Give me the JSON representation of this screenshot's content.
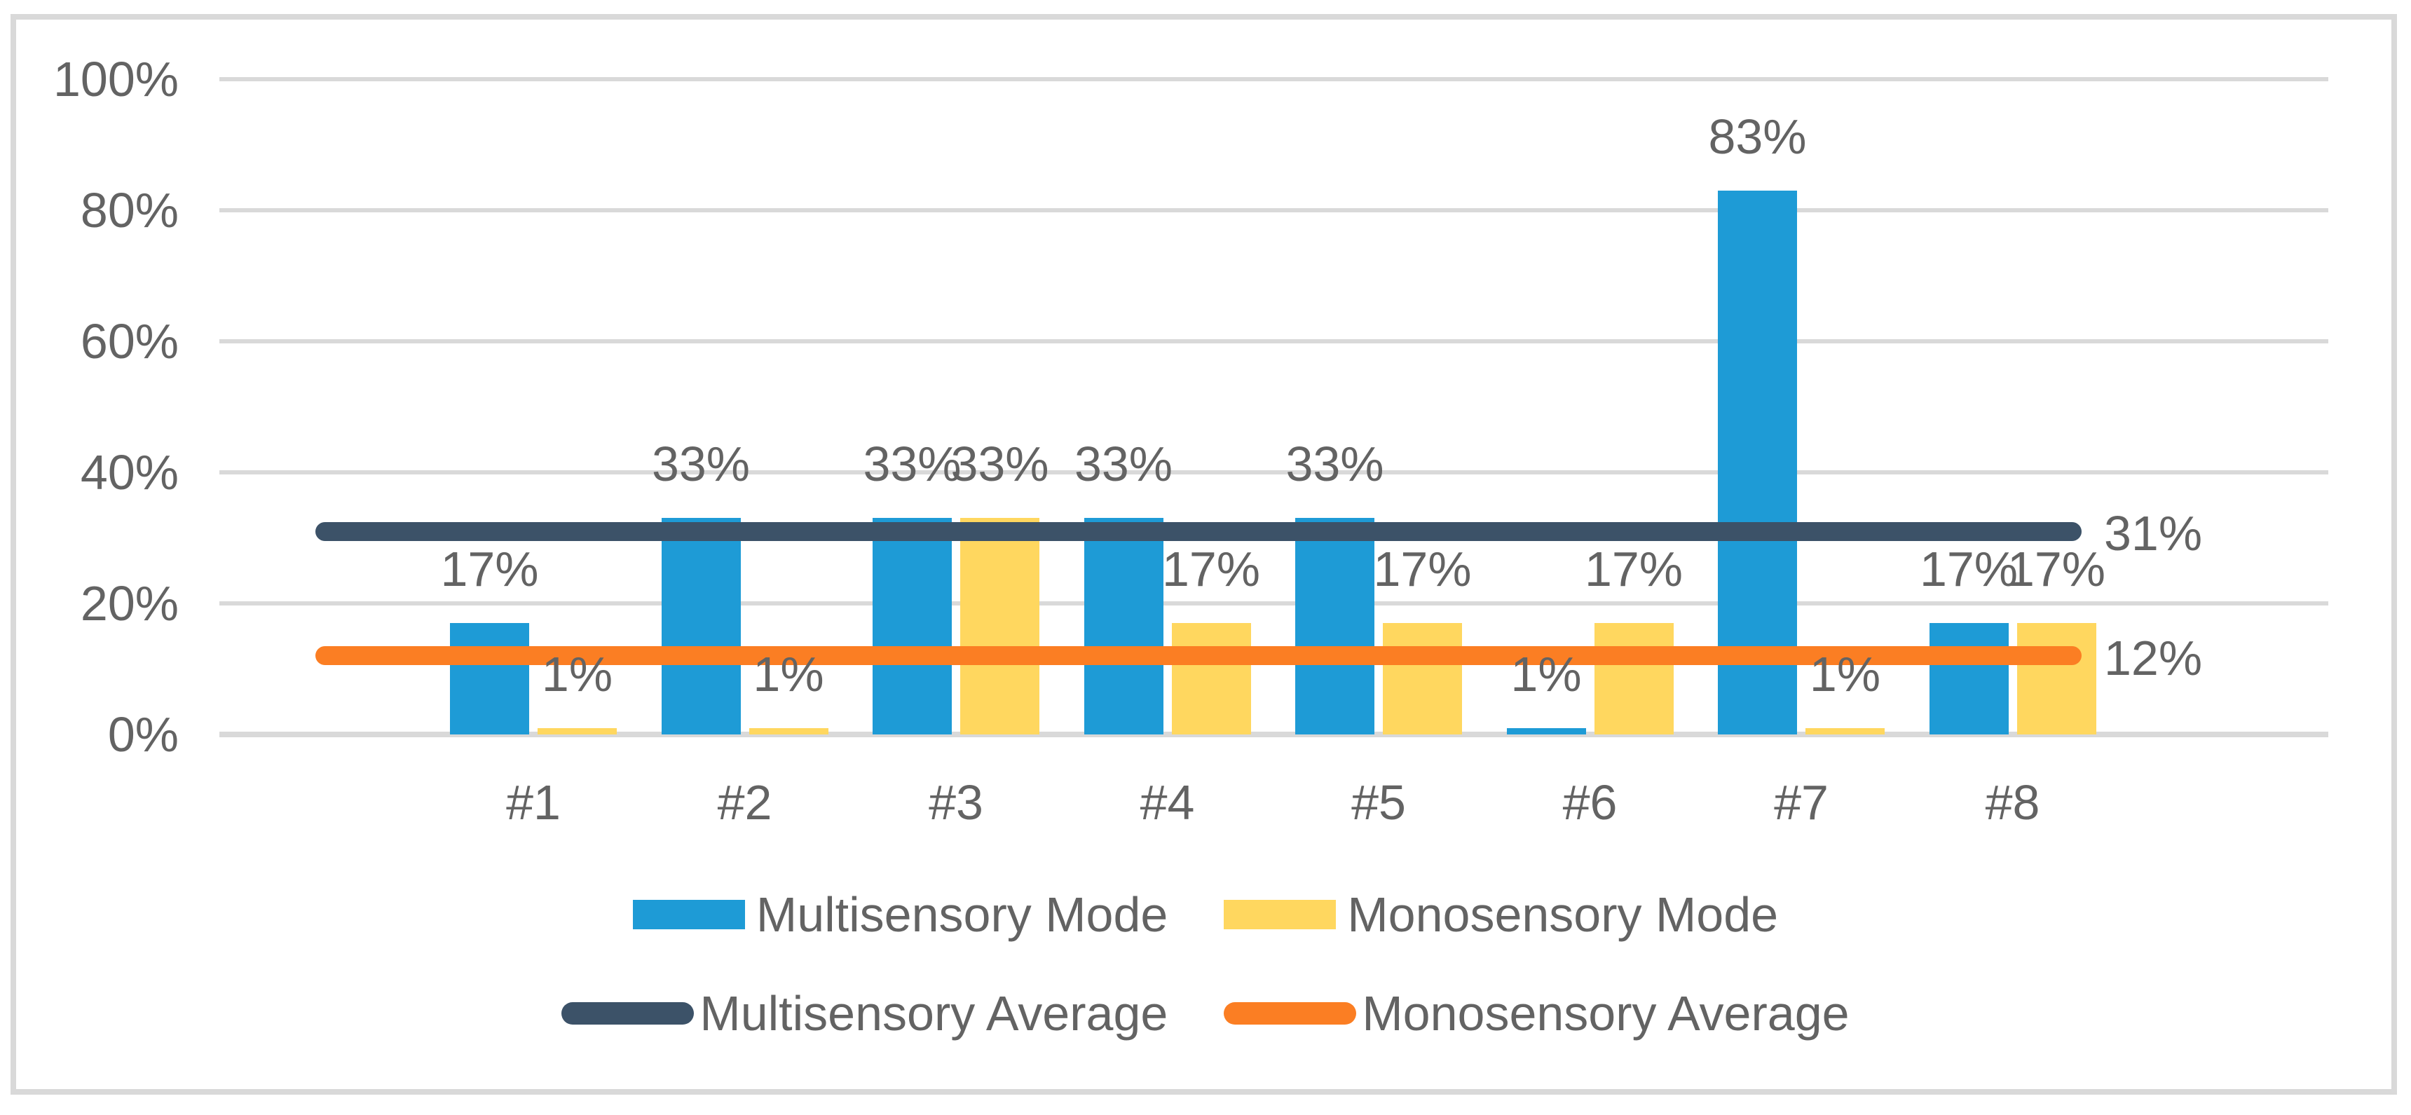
{
  "colors": {
    "background": "#FFFFFF",
    "figure_border": "#D9D9D9",
    "gridline": "#D9D9D9",
    "axis_line": "#D9D9D9",
    "text": "#636363",
    "multisensory_mode": "#1E9BD6",
    "monosensory_mode": "#FFD75F",
    "multisensory_average": "#3C5268",
    "monosensory_average": "#FB7E23"
  },
  "chart_data": {
    "type": "bar",
    "title": "",
    "xlabel": "",
    "ylabel": "",
    "categories": [
      "#1",
      "#2",
      "#3",
      "#4",
      "#5",
      "#6",
      "#7",
      "#8"
    ],
    "series": [
      {
        "name": "Multisensory Mode",
        "kind": "bar",
        "color": "#1E9BD6",
        "values": [
          17,
          33,
          33,
          33,
          33,
          1,
          83,
          17
        ],
        "labels": [
          "17%",
          "33%",
          "33%",
          "33%",
          "33%",
          "1%",
          "83%",
          "17%"
        ]
      },
      {
        "name": "Monosensory Mode",
        "kind": "bar",
        "color": "#FFD75F",
        "values": [
          1,
          1,
          33,
          17,
          17,
          17,
          1,
          17
        ],
        "labels": [
          "1%",
          "1%",
          "33%",
          "17%",
          "17%",
          "17%",
          "1%",
          "17%"
        ]
      },
      {
        "name": "Multisensory Average",
        "kind": "line",
        "color": "#3C5268",
        "value": 31,
        "label": "31%"
      },
      {
        "name": "Monosensory Average",
        "kind": "line",
        "color": "#FB7E23",
        "value": 12,
        "label": "12%"
      }
    ],
    "y_axis": {
      "range": [
        0,
        100
      ],
      "ticks": [
        {
          "value": 0,
          "label": "0%"
        },
        {
          "value": 20,
          "label": "20%"
        },
        {
          "value": 40,
          "label": "40%"
        },
        {
          "value": 60,
          "label": "60%"
        },
        {
          "value": 80,
          "label": "80%"
        },
        {
          "value": 100,
          "label": "100%"
        }
      ]
    },
    "grid": true,
    "data_labels": "outside-end",
    "legend_position": "bottom",
    "legend_rows": [
      [
        "Multisensory Mode",
        "Monosensory Mode"
      ],
      [
        "Multisensory Average",
        "Monosensory Average"
      ]
    ]
  }
}
